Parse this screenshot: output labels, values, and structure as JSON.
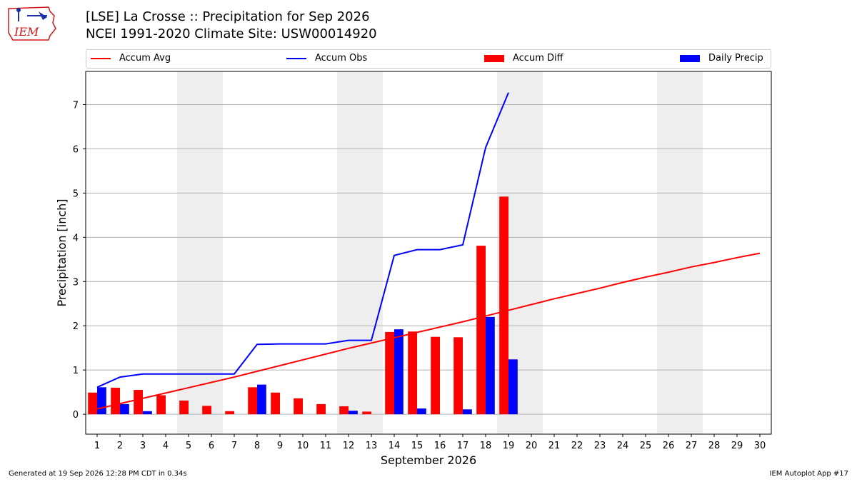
{
  "header": {
    "title_line1": "[LSE] La Crosse :: Precipitation for Sep 2026",
    "title_line2": "NCEI 1991-2020 Climate Site: USW00014920",
    "logo_text": "IEM"
  },
  "legend": {
    "accum_avg": "Accum Avg",
    "accum_obs": "Accum Obs",
    "accum_diff": "Accum Diff",
    "daily_precip": "Daily Precip"
  },
  "footer": {
    "left": "Generated at 19 Sep 2026 12:28 PM CDT in 0.34s",
    "right": "IEM Autoplot App #17"
  },
  "colors": {
    "avg": "#ff0000",
    "obs": "#0000ff",
    "diff": "#ff0000",
    "daily": "#0000ff",
    "weekend_shade": "#eeeeee",
    "grid": "#b0b0b0"
  },
  "chart_data": {
    "type": "bar",
    "xlabel": "September 2026",
    "ylabel": "Precipitation [inch]",
    "xlim": [
      0.5,
      30.5
    ],
    "ylim": [
      -0.45,
      7.75
    ],
    "yticks": [
      0,
      1,
      2,
      3,
      4,
      5,
      6,
      7
    ],
    "x": [
      1,
      2,
      3,
      4,
      5,
      6,
      7,
      8,
      9,
      10,
      11,
      12,
      13,
      14,
      15,
      16,
      17,
      18,
      19,
      20,
      21,
      22,
      23,
      24,
      25,
      26,
      27,
      28,
      29,
      30
    ],
    "weekend_days": [
      [
        5,
        6
      ],
      [
        12,
        13
      ],
      [
        19,
        20
      ],
      [
        26,
        27
      ]
    ],
    "grid": "y",
    "legend_position": "top",
    "series": [
      {
        "name": "Accum Avg",
        "kind": "line",
        "x": [
          1,
          2,
          3,
          4,
          5,
          6,
          7,
          8,
          9,
          10,
          11,
          12,
          13,
          14,
          15,
          16,
          17,
          18,
          19,
          20,
          21,
          22,
          23,
          24,
          25,
          26,
          27,
          28,
          29,
          30
        ],
        "values": [
          0.12,
          0.24,
          0.36,
          0.48,
          0.6,
          0.72,
          0.84,
          0.97,
          1.1,
          1.23,
          1.36,
          1.49,
          1.61,
          1.73,
          1.85,
          1.97,
          2.09,
          2.22,
          2.35,
          2.48,
          2.61,
          2.73,
          2.85,
          2.98,
          3.1,
          3.21,
          3.33,
          3.43,
          3.54,
          3.64
        ]
      },
      {
        "name": "Accum Obs",
        "kind": "line",
        "x": [
          1,
          2,
          3,
          4,
          5,
          6,
          7,
          8,
          9,
          10,
          11,
          12,
          13,
          14,
          15,
          16,
          17,
          18,
          19
        ],
        "values": [
          0.61,
          0.84,
          0.91,
          0.91,
          0.91,
          0.91,
          0.91,
          1.58,
          1.59,
          1.59,
          1.59,
          1.67,
          1.67,
          3.59,
          3.72,
          3.72,
          3.83,
          6.03,
          7.27
        ]
      },
      {
        "name": "Accum Diff",
        "kind": "bar",
        "x": [
          1,
          2,
          3,
          4,
          5,
          6,
          7,
          8,
          9,
          10,
          11,
          12,
          13,
          14,
          15,
          16,
          17,
          18,
          19
        ],
        "values": [
          0.49,
          0.6,
          0.55,
          0.43,
          0.31,
          0.19,
          0.07,
          0.61,
          0.49,
          0.36,
          0.23,
          0.18,
          0.06,
          1.86,
          1.87,
          1.75,
          1.74,
          3.81,
          4.92
        ]
      },
      {
        "name": "Daily Precip",
        "kind": "bar",
        "x": [
          1,
          2,
          3,
          4,
          5,
          6,
          7,
          8,
          9,
          10,
          11,
          12,
          13,
          14,
          15,
          16,
          17,
          18,
          19
        ],
        "values": [
          0.61,
          0.23,
          0.07,
          0,
          0,
          0,
          0,
          0.67,
          0,
          0,
          0,
          0.08,
          0,
          1.92,
          0.13,
          0,
          0.11,
          2.2,
          1.24
        ]
      }
    ]
  }
}
